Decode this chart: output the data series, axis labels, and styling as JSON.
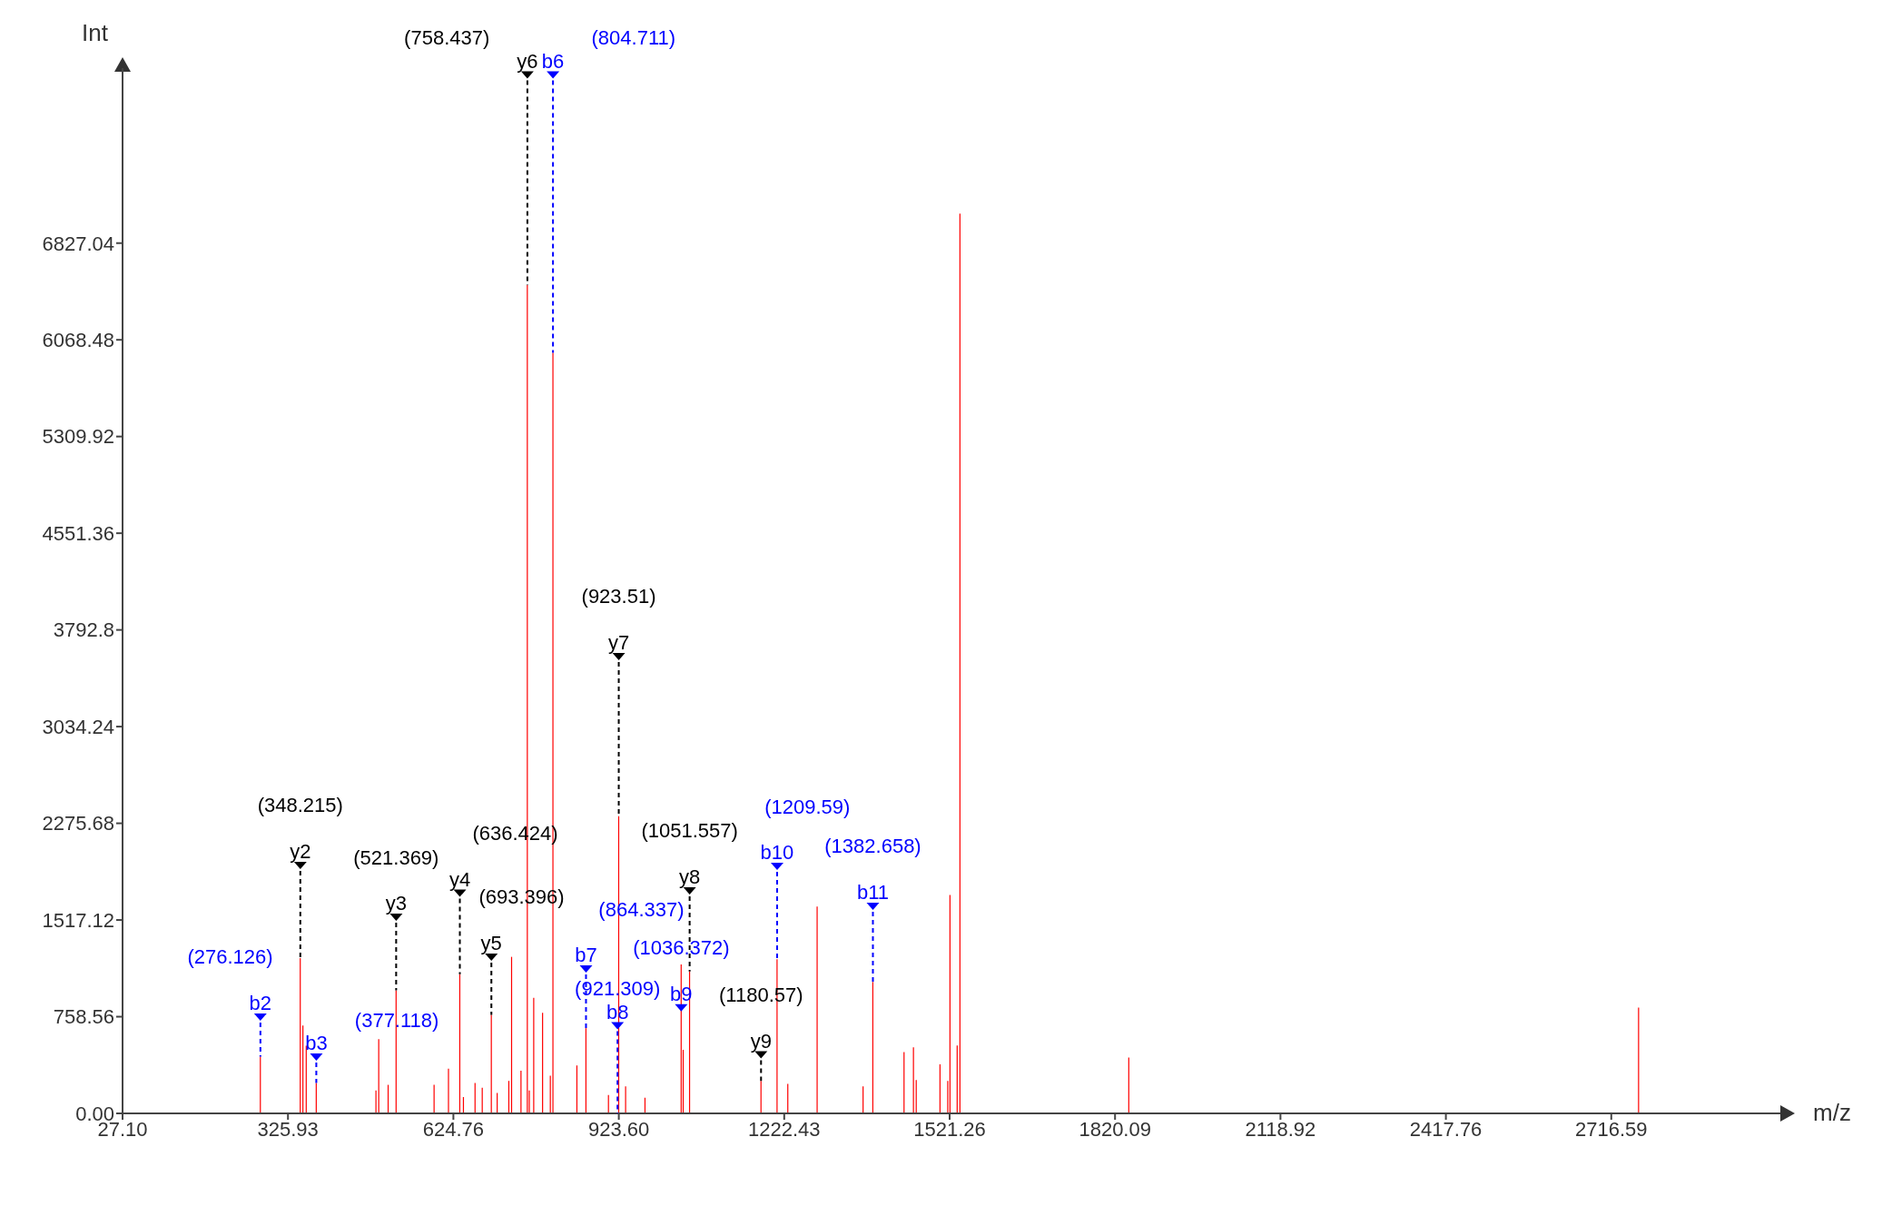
{
  "chart_data": {
    "type": "bar",
    "xlabel": "m/z",
    "ylabel": "Int",
    "xlim": [
      27.1,
      3015.42
    ],
    "xticks": [
      {
        "value": 27.1,
        "label": "27.10"
      },
      325.93,
      624.76,
      {
        "value": 923.6,
        "label": "923.60"
      },
      1222.43,
      1521.26,
      1820.09,
      2118.92,
      2417.76,
      2716.59
    ],
    "ylim": [
      0,
      8200
    ],
    "yticks": [
      {
        "value": 0,
        "label": "0.00"
      },
      758.56,
      1517.12,
      2275.68,
      3034.24,
      3792.8,
      4551.36,
      5309.92,
      6068.48,
      6827.04
    ],
    "grid": false,
    "legend": false,
    "series": [
      {
        "color": "#ff0000",
        "x": [
          276.126,
          348.215,
          353,
          359,
          377.118,
          485,
          490,
          507,
          521.369,
          590,
          616,
          636.424,
          643,
          664,
          677,
          693.396,
          704,
          725,
          730,
          747,
          758.437,
          762,
          770,
          786,
          800,
          804.711,
          848,
          864.337,
          905,
          923.51,
          936,
          971,
          1036.372,
          1040,
          1051.557,
          1180.57,
          1209.59,
          1229,
          1282,
          1365,
          1382.658,
          1439,
          1456,
          1461,
          1504,
          1518,
          1522,
          1535,
          1540,
          1845,
          2766
        ],
        "values": [
          446,
          1219,
          690,
          530,
          239,
          179,
          583,
          224,
          965,
          224,
          350,
          1091,
          128,
          239,
          201,
          773,
          160,
          255,
          1228,
          335,
          6498,
          180,
          907,
          789,
          296,
          5966,
          376,
          669,
          144,
          2331,
          212,
          123,
          1168,
          499,
          1113,
          254,
          1209,
          231,
          1623,
          212,
          1031,
          480,
          518,
          262,
          385,
          254,
          1714,
          532,
          7059,
          439,
          830
        ]
      },
      {
        "type": "scatter",
        "color": "#000000",
        "marker": "triangle",
        "line_style": "dashed",
        "x": [
          348.215,
          521.369,
          636.424,
          693.396,
          758.437,
          923.51,
          1051.557,
          1180.57
        ],
        "values": [
          1945,
          1538,
          1727,
          1225,
          8146,
          3583,
          1745,
          459
        ],
        "value_labels": [
          "y2",
          "y3",
          "y4",
          "y5",
          "y6",
          "y7",
          "y8",
          "y9"
        ]
      },
      {
        "type": "scatter",
        "color": "#0000ff",
        "marker": "triangle",
        "line_style": "dashed",
        "x": [
          276.126,
          377.118,
          804.711,
          864.337,
          921.309,
          1036.372,
          1209.59,
          1382.658
        ],
        "values": [
          755,
          442,
          8146,
          1132,
          687,
          828,
          1937,
          1624
        ],
        "value_labels": [
          "b2",
          "b3",
          "b6",
          "b7",
          "b8",
          "b9",
          "b10",
          "b11"
        ]
      }
    ],
    "annotations": [
      {
        "text": "(348.215)",
        "x": 348.215,
        "y": 1945
      },
      {
        "text": "(521.369)",
        "x": 521.369,
        "y": 1538
      },
      {
        "text": "(636.424)",
        "x": 636.424,
        "y": 1727
      },
      {
        "text": "(693.396)",
        "x": 693.396,
        "y": 1225
      },
      {
        "text": "(758.437)",
        "x": 758.437,
        "y": 8146
      },
      {
        "text": "(923.51)",
        "x": 923.51,
        "y": 3583
      },
      {
        "text": "(1051.557)",
        "x": 1051.557,
        "y": 1745
      },
      {
        "text": "(1180.57)",
        "x": 1180.57,
        "y": 459
      },
      {
        "text": "(276.126)",
        "x": 276.126,
        "y": 755
      },
      {
        "text": "(377.118)",
        "x": 377.118,
        "y": 442
      },
      {
        "text": "(804.711)",
        "x": 804.711,
        "y": 8146
      },
      {
        "text": "(864.337)",
        "x": 864.337,
        "y": 1132
      },
      {
        "text": "(921.309)",
        "x": 921.309,
        "y": 687
      },
      {
        "text": "(1036.372)",
        "x": 1036.372,
        "y": 828
      },
      {
        "text": "(1209.59)",
        "x": 1209.59,
        "y": 1937
      },
      {
        "text": "(1382.658)",
        "x": 1382.658,
        "y": 1624
      }
    ]
  }
}
